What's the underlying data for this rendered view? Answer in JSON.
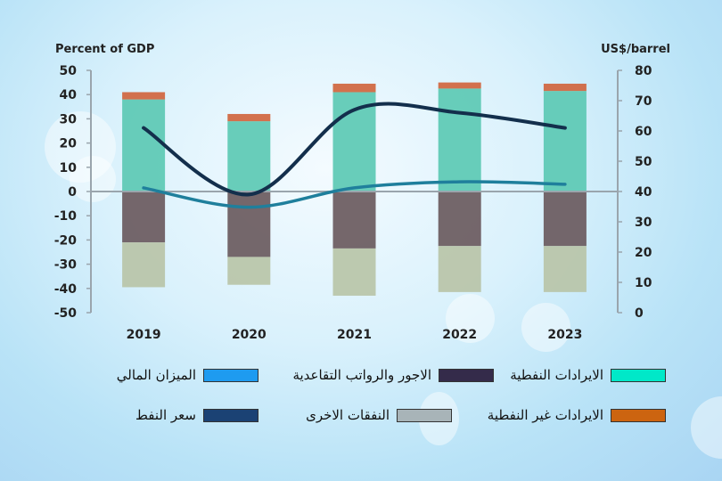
{
  "chart_data": {
    "type": "bar",
    "stacked": true,
    "categories": [
      "2019",
      "2020",
      "2021",
      "2022",
      "2023"
    ],
    "left_axis": {
      "label": "Percent of GDP",
      "range": [
        -50,
        50
      ],
      "ticks": [
        "50",
        "40",
        "30",
        "20",
        "10",
        "0",
        "-10",
        "-20",
        "-30",
        "-40",
        "-50"
      ]
    },
    "right_axis": {
      "label": "US$/barrel",
      "range": [
        0,
        80
      ],
      "ticks": [
        "80",
        "70",
        "60",
        "50",
        "40",
        "30",
        "20",
        "10",
        "0"
      ]
    },
    "series": [
      {
        "name": "الايرادات النفطية",
        "kind": "bar",
        "axis": "left",
        "color": "#5cc9b4",
        "values": [
          38,
          29,
          41,
          42.5,
          41.5
        ]
      },
      {
        "name": "الايرادات غير النفطية",
        "kind": "bar",
        "axis": "left",
        "color": "#d0653e",
        "values": [
          3,
          3,
          3.5,
          2.5,
          3
        ]
      },
      {
        "name": "الاجور والرواتب التقاعدية",
        "kind": "bar",
        "axis": "left",
        "color": "#6a5a5e",
        "values": [
          -21,
          -27,
          -23.5,
          -22.5,
          -22.5
        ]
      },
      {
        "name": "النفقات الاخرى",
        "kind": "bar",
        "axis": "left",
        "color": "#b8c4a8",
        "values": [
          -18.5,
          -11.5,
          -19.5,
          -19,
          -19
        ]
      },
      {
        "name": "الميزان المالي",
        "kind": "line",
        "axis": "left",
        "color": "#1f7f9c",
        "values": [
          1.5,
          -6.5,
          1.5,
          4,
          3
        ]
      },
      {
        "name": "سعر النفط",
        "kind": "line",
        "axis": "right",
        "color": "#132f4c",
        "values": [
          61,
          39,
          67,
          66,
          61
        ]
      }
    ],
    "legend": {
      "placement": "bottom",
      "items": [
        {
          "label": "الايرادات النفطية",
          "color": "#00e8c8"
        },
        {
          "label": "الاجور والرواتب التقاعدية",
          "color": "#342b4a"
        },
        {
          "label": "الميزان المالي",
          "color": "#1e9bf0"
        },
        {
          "label": "الايرادات غير النفطية",
          "color": "#cc6410"
        },
        {
          "label": "النفقات الاخرى",
          "color": "#a8b4b8"
        },
        {
          "label": "سعر النفط",
          "color": "#1b4274"
        }
      ]
    },
    "grid": false
  }
}
